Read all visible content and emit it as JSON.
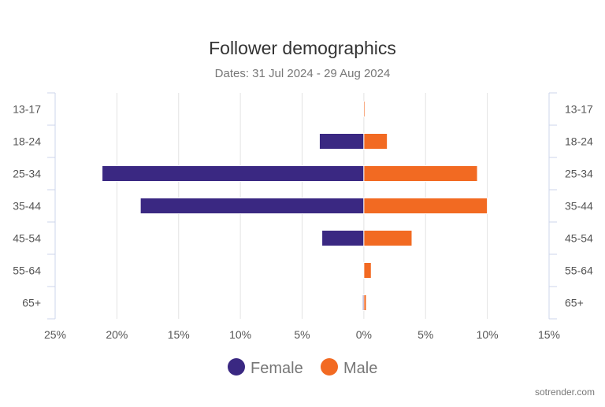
{
  "chart_data": {
    "type": "bar",
    "orientation": "horizontal-diverging",
    "title": "Follower demographics",
    "subtitle": "Dates: 31 Jul 2024 - 29 Aug 2024",
    "categories": [
      "13-17",
      "18-24",
      "25-34",
      "35-44",
      "45-54",
      "55-64",
      "65+"
    ],
    "series": [
      {
        "name": "Female",
        "color": "#3a2882",
        "values": [
          0,
          3.6,
          21.2,
          18.1,
          3.4,
          0,
          0.1
        ]
      },
      {
        "name": "Male",
        "color": "#f26a22",
        "values": [
          0.1,
          1.9,
          9.2,
          10.0,
          3.9,
          0.6,
          0.2
        ]
      }
    ],
    "xlim": [
      -25,
      15
    ],
    "x_ticks": [
      -25,
      -20,
      -15,
      -10,
      -5,
      0,
      5,
      10,
      15
    ],
    "x_tick_labels": [
      "25%",
      "20%",
      "15%",
      "10%",
      "5%",
      "0%",
      "5%",
      "10%",
      "15%"
    ],
    "unit": "%",
    "grid": true,
    "legend": "bottom-center"
  },
  "watermark": "sotrender.com"
}
